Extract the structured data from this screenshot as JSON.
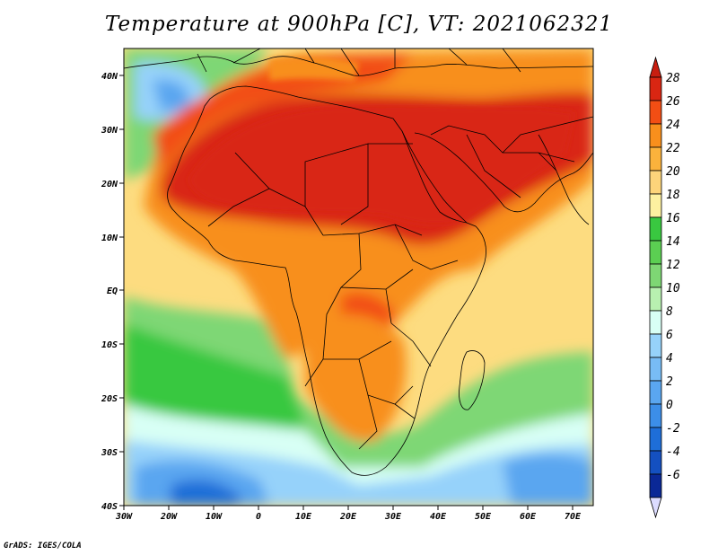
{
  "title": "Temperature at 900hPa [C], VT: 2021062321",
  "credit": "GrADS: IGES/COLA",
  "map": {
    "lon_labels": [
      "30W",
      "20W",
      "10W",
      "0",
      "10E",
      "20E",
      "30E",
      "40E",
      "50E",
      "60E",
      "70E"
    ],
    "lat_labels": [
      "40N",
      "30N",
      "20N",
      "10N",
      "EQ",
      "10S",
      "20S",
      "30S",
      "40S"
    ],
    "colors": {
      "ocean_base": "#fddc80",
      "hot_core": "#d92612",
      "warm": "#f24e14",
      "orange": "#f88f1c",
      "mild_green": "#39c840",
      "light_green": "#7ed774",
      "pale_green": "#b8f0b0",
      "cool_cyan": "#d8fff5",
      "cool_blue": "#96d2fa",
      "mid_blue": "#5aa6f0",
      "deep_blue": "#1e6ed8"
    }
  },
  "colorbar": {
    "labels": [
      "28",
      "26",
      "24",
      "22",
      "20",
      "18",
      "16",
      "14",
      "12",
      "10",
      "8",
      "6",
      "4",
      "2",
      "0",
      "-2",
      "-4",
      "-6"
    ],
    "colors": [
      "#d92612",
      "#f24e14",
      "#f88f1c",
      "#fbb23c",
      "#fdd47a",
      "#fdf0a0",
      "#39c840",
      "#5bcf52",
      "#7ed774",
      "#b8f0b0",
      "#d8fff5",
      "#96d2fa",
      "#78bcf5",
      "#5aa6f0",
      "#3c8ee8",
      "#1e6ed8",
      "#1450c0",
      "#0a2896"
    ],
    "top_arrow_color": "#c81e10",
    "bottom_arrow_color": "#dcdcff"
  }
}
